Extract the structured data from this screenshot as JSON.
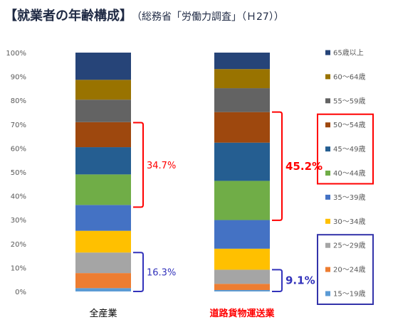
{
  "title": "【就業者の年齢構成】",
  "subtitle": "（総務省「労働力調査」（Ｈ27））",
  "chart_data": {
    "type": "bar",
    "stacked": true,
    "ylim": [
      0,
      100
    ],
    "yticks": [
      "0%",
      "10%",
      "20%",
      "30%",
      "40%",
      "50%",
      "60%",
      "70%",
      "80%",
      "90%",
      "100%"
    ],
    "categories": [
      "全産業",
      "道路貨物運送業"
    ],
    "category_colors": [
      "#000000",
      "#ff0000"
    ],
    "series": [
      {
        "name": "15～19歳",
        "color": "#5b9bd5",
        "values": [
          1.4,
          0.6
        ]
      },
      {
        "name": "20～24歳",
        "color": "#ed7d31",
        "values": [
          6.3,
          2.6
        ]
      },
      {
        "name": "25～29歳",
        "color": "#a5a5a5",
        "values": [
          8.6,
          5.9
        ]
      },
      {
        "name": "30～34歳",
        "color": "#ffc000",
        "values": [
          9.1,
          8.8
        ]
      },
      {
        "name": "35～39歳",
        "color": "#4472c4",
        "values": [
          10.8,
          12.0
        ]
      },
      {
        "name": "40～44歳",
        "color": "#70ad47",
        "values": [
          12.8,
          16.4
        ]
      },
      {
        "name": "45～49歳",
        "color": "#255e91",
        "values": [
          11.4,
          16.0
        ]
      },
      {
        "name": "50～54歳",
        "color": "#9e480e",
        "values": [
          10.5,
          12.8
        ]
      },
      {
        "name": "55～59歳",
        "color": "#636363",
        "values": [
          9.4,
          10.0
        ]
      },
      {
        "name": "60～64歳",
        "color": "#997300",
        "values": [
          8.3,
          8.0
        ]
      },
      {
        "name": "65歳以上",
        "color": "#264478",
        "values": [
          11.4,
          6.9
        ]
      }
    ],
    "annotations": [
      {
        "text": "34.7%",
        "color": "#ff0000",
        "category": 0,
        "range": [
          35.3,
          70.7
        ],
        "bold": false
      },
      {
        "text": "16.3%",
        "color": "#3333bb",
        "category": 0,
        "range": [
          0,
          16.3
        ],
        "bold": false
      },
      {
        "text": "45.2%",
        "color": "#ff0000",
        "category": 1,
        "range": [
          29.8,
          75.1
        ],
        "bold": true
      },
      {
        "text": "9.1%",
        "color": "#3333bb",
        "category": 1,
        "range": [
          0,
          9.1
        ],
        "bold": true
      }
    ],
    "legend": {
      "position": "right",
      "order": "top-down reversed"
    },
    "legend_groups": [
      {
        "color": "#ff0000",
        "series": [
          "50～54歳",
          "45～49歳",
          "40～44歳"
        ]
      },
      {
        "color": "#3333aa",
        "series": [
          "25～29歳",
          "20～24歳",
          "15～19歳"
        ]
      }
    ]
  }
}
